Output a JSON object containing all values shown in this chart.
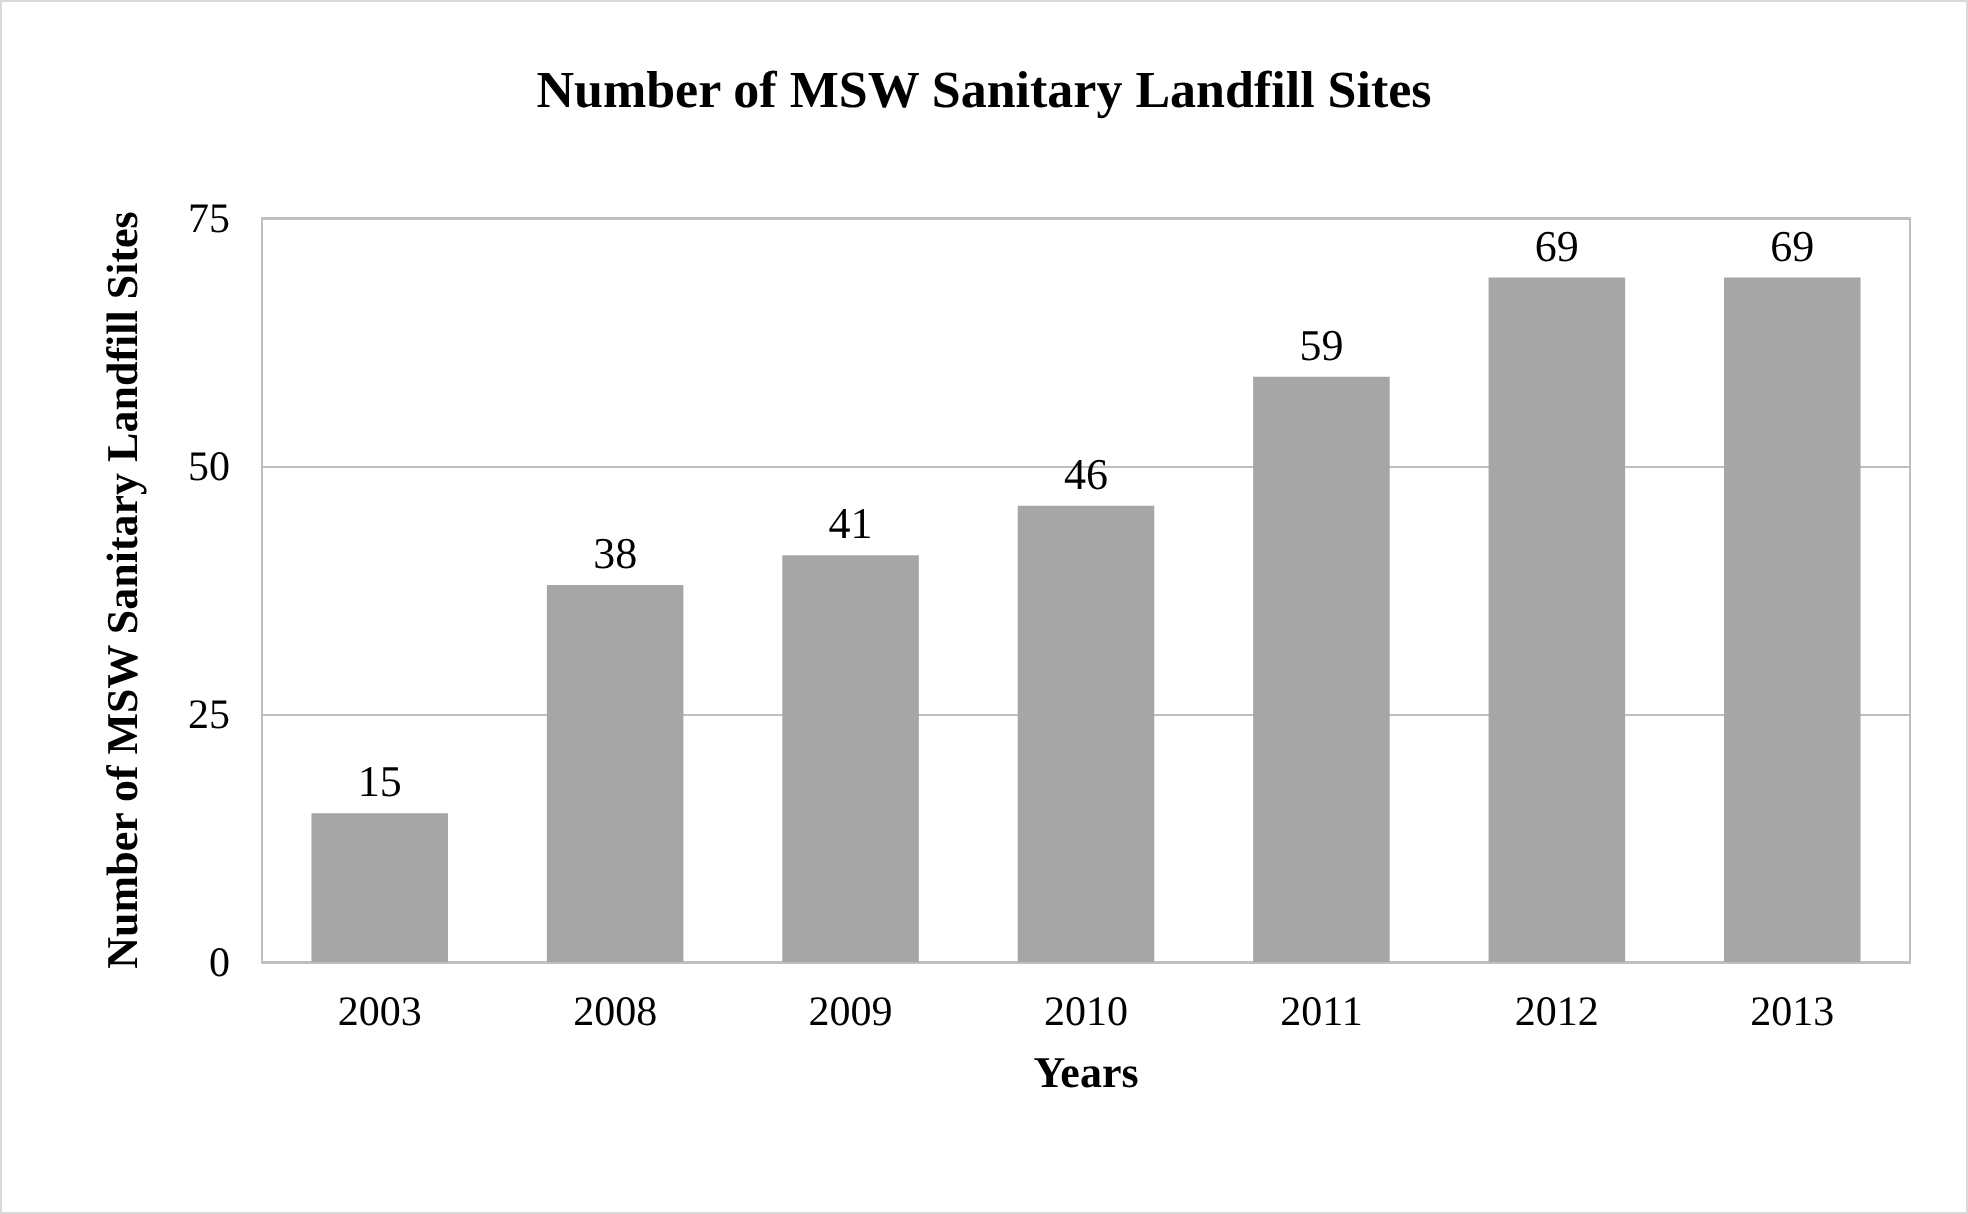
{
  "chart_data": {
    "type": "bar",
    "title": "Number of MSW Sanitary Landfill Sites",
    "xlabel": "Years",
    "ylabel": "Number of MSW Sanitary Landfill Sites",
    "categories": [
      "2003",
      "2008",
      "2009",
      "2010",
      "2011",
      "2012",
      "2013"
    ],
    "values": [
      15,
      38,
      41,
      46,
      59,
      69,
      69
    ],
    "color": "#a6a6a6",
    "ylim": [
      0,
      75
    ],
    "yticks": [
      0,
      25,
      50,
      75
    ],
    "grid": "y",
    "data_labels": true
  }
}
